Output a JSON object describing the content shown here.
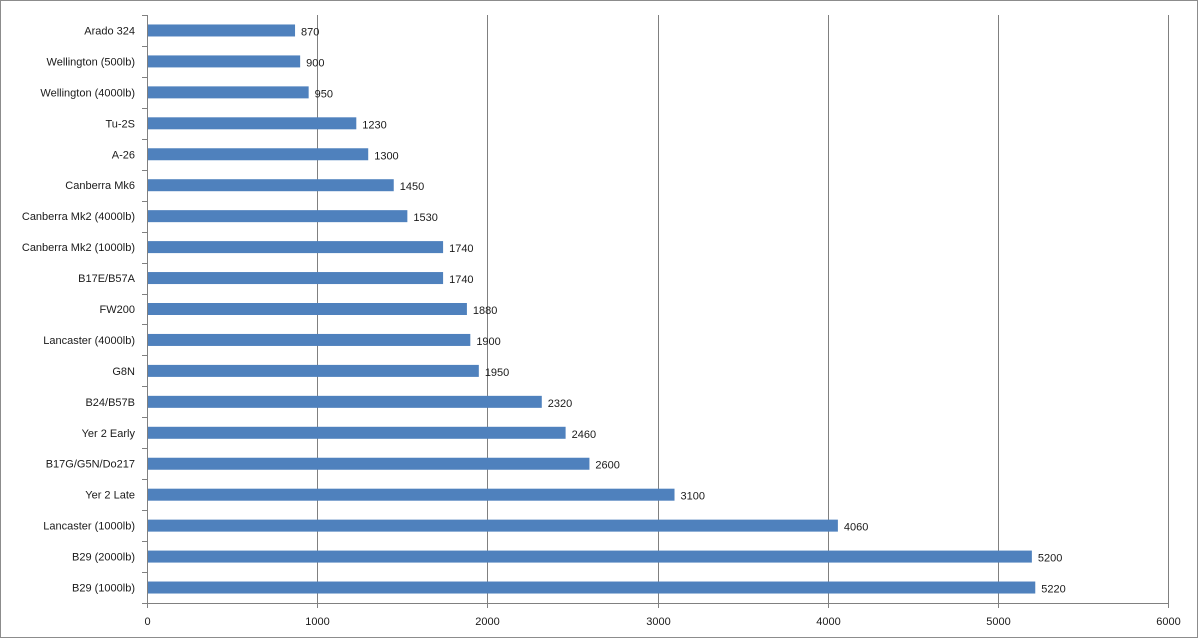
{
  "chart_data": {
    "type": "bar",
    "orientation": "horizontal",
    "categories": [
      "Arado 324",
      "Wellington (500lb)",
      "Wellington (4000lb)",
      "Tu-2S",
      "A-26",
      "Canberra Mk6",
      "Canberra Mk2 (4000lb)",
      "Canberra Mk2 (1000lb)",
      "B17E/B57A",
      "FW200",
      "Lancaster (4000lb)",
      "G8N",
      "B24/B57B",
      "Yer 2 Early",
      "B17G/G5N/Do217",
      "Yer 2 Late",
      "Lancaster (1000lb)",
      "B29 (2000lb)",
      "B29 (1000lb)"
    ],
    "values": [
      870,
      900,
      950,
      1230,
      1300,
      1450,
      1530,
      1740,
      1740,
      1880,
      1900,
      1950,
      2320,
      2460,
      2600,
      3100,
      4060,
      5200,
      5220
    ],
    "data_labels": [
      "870",
      "900",
      "950",
      "1230",
      "1300",
      "1450",
      "1530",
      "1740",
      "1740",
      "1880",
      "1900",
      "1950",
      "2320",
      "2460",
      "2600",
      "3100",
      "4060",
      "5200",
      "5220"
    ],
    "x_ticks": [
      0,
      1000,
      2000,
      3000,
      4000,
      5000,
      6000
    ],
    "x_tick_labels": [
      "0",
      "1000",
      "2000",
      "3000",
      "4000",
      "5000",
      "6000"
    ],
    "xlim": [
      0,
      6000
    ],
    "title": "",
    "xlabel": "",
    "ylabel": "",
    "grid": "vertical major gridlines",
    "legend": "none",
    "bar_color": "#4f81bd",
    "gridline_color": "#808080",
    "text_color": "#1a1a1a"
  }
}
